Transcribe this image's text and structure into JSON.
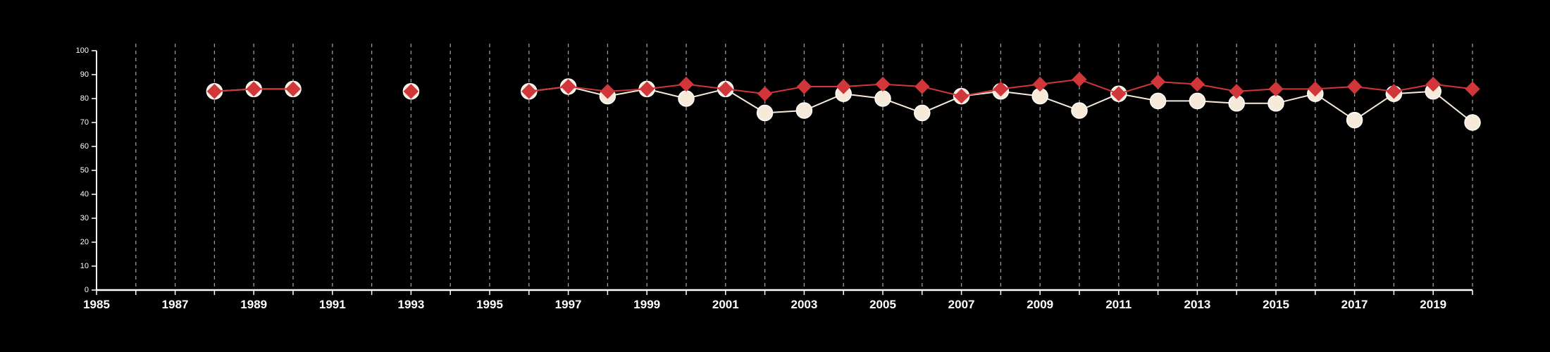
{
  "chart_data": {
    "type": "line",
    "x_range": [
      1985,
      2020
    ],
    "ylim": [
      0,
      100
    ],
    "y_ticks": [
      "0",
      "10",
      "20",
      "30",
      "40",
      "50",
      "60",
      "70",
      "80",
      "90",
      "100"
    ],
    "x_tick_labels": [
      "1985",
      "1987",
      "1989",
      "1991",
      "1993",
      "1995",
      "1997",
      "1999",
      "2001",
      "2003",
      "2005",
      "2007",
      "2009",
      "2011",
      "2013",
      "2015",
      "2017",
      "2019"
    ],
    "grid": "vertical dashed lines at every year",
    "legend": "none",
    "colors": {
      "background": "#000000",
      "axis": "#ffffff",
      "grid": "#9a9a9a",
      "series_red": "#d0363a",
      "series_cream": "#f7ead9"
    },
    "series": [
      {
        "marker": "diamond",
        "color": "#d0363a",
        "points": [
          {
            "x": 1988,
            "y": 83
          },
          {
            "x": 1989,
            "y": 84
          },
          {
            "x": 1990,
            "y": 84
          },
          {
            "x": 1993,
            "y": 83
          },
          {
            "x": 1996,
            "y": 83
          },
          {
            "x": 1997,
            "y": 85
          },
          {
            "x": 1998,
            "y": 83
          },
          {
            "x": 1999,
            "y": 84
          },
          {
            "x": 2000,
            "y": 86
          },
          {
            "x": 2001,
            "y": 84
          },
          {
            "x": 2002,
            "y": 82
          },
          {
            "x": 2003,
            "y": 85
          },
          {
            "x": 2004,
            "y": 85
          },
          {
            "x": 2005,
            "y": 86
          },
          {
            "x": 2006,
            "y": 85
          },
          {
            "x": 2007,
            "y": 81
          },
          {
            "x": 2008,
            "y": 84
          },
          {
            "x": 2009,
            "y": 86
          },
          {
            "x": 2010,
            "y": 88
          },
          {
            "x": 2011,
            "y": 82
          },
          {
            "x": 2012,
            "y": 87
          },
          {
            "x": 2013,
            "y": 86
          },
          {
            "x": 2014,
            "y": 83
          },
          {
            "x": 2015,
            "y": 84
          },
          {
            "x": 2016,
            "y": 84
          },
          {
            "x": 2017,
            "y": 85
          },
          {
            "x": 2018,
            "y": 83
          },
          {
            "x": 2019,
            "y": 86
          },
          {
            "x": 2020,
            "y": 84
          }
        ]
      },
      {
        "marker": "circle",
        "color": "#f7ead9",
        "points": [
          {
            "x": 1988,
            "y": 83
          },
          {
            "x": 1989,
            "y": 84
          },
          {
            "x": 1990,
            "y": 84
          },
          {
            "x": 1993,
            "y": 83
          },
          {
            "x": 1996,
            "y": 83
          },
          {
            "x": 1997,
            "y": 85
          },
          {
            "x": 1998,
            "y": 81
          },
          {
            "x": 1999,
            "y": 84
          },
          {
            "x": 2000,
            "y": 80
          },
          {
            "x": 2001,
            "y": 84
          },
          {
            "x": 2002,
            "y": 74
          },
          {
            "x": 2003,
            "y": 75
          },
          {
            "x": 2004,
            "y": 82
          },
          {
            "x": 2005,
            "y": 80
          },
          {
            "x": 2006,
            "y": 74
          },
          {
            "x": 2007,
            "y": 81
          },
          {
            "x": 2008,
            "y": 83
          },
          {
            "x": 2009,
            "y": 81
          },
          {
            "x": 2010,
            "y": 75
          },
          {
            "x": 2011,
            "y": 82
          },
          {
            "x": 2012,
            "y": 79
          },
          {
            "x": 2013,
            "y": 79
          },
          {
            "x": 2014,
            "y": 78
          },
          {
            "x": 2015,
            "y": 78
          },
          {
            "x": 2016,
            "y": 82
          },
          {
            "x": 2017,
            "y": 71
          },
          {
            "x": 2018,
            "y": 82
          },
          {
            "x": 2019,
            "y": 83
          },
          {
            "x": 2020,
            "y": 70
          }
        ]
      }
    ]
  }
}
